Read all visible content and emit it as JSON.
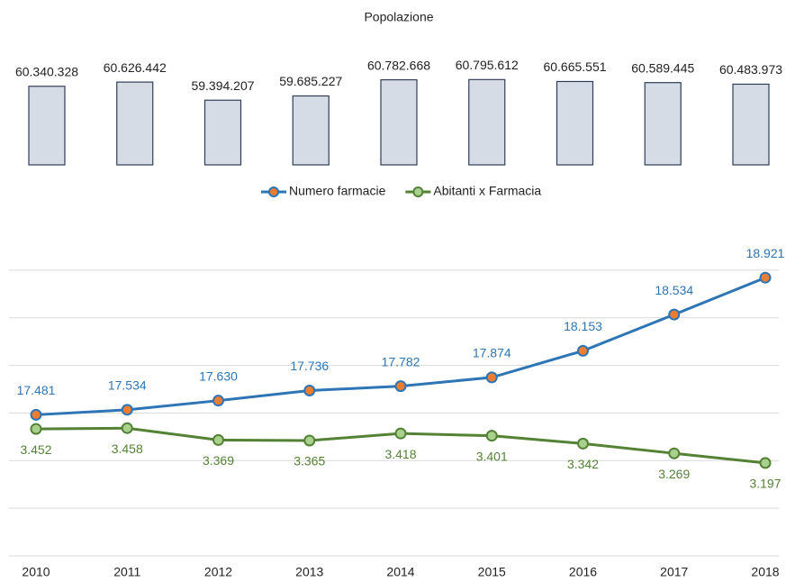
{
  "chart_data": [
    {
      "type": "bar",
      "title": "Popolazione",
      "values": [
        60340328,
        60626442,
        59394207,
        59685227,
        60782668,
        60795612,
        60665551,
        60589445,
        60483973
      ],
      "value_labels": [
        "60.340.328",
        "60.626.442",
        "59.394.207",
        "59.685.227",
        "60.782.668",
        "60.795.612",
        "60.665.551",
        "60.589.445",
        "60.483.973"
      ],
      "color": "#d6dce5",
      "edge_color": "#2f3e57",
      "ylim": [
        55000000,
        61000000
      ]
    },
    {
      "type": "line",
      "categories": [
        "2010",
        "2011",
        "2012",
        "2013",
        "2014",
        "2015",
        "2016",
        "2017",
        "2018"
      ],
      "series": [
        {
          "name": "Numero farmacie",
          "color": "#2e75b6",
          "marker_color": "#ed7d31",
          "values": [
            17481,
            17534,
            17630,
            17736,
            17782,
            17874,
            18153,
            18534,
            18921
          ],
          "value_labels": [
            "17.481",
            "17.534",
            "17.630",
            "17.736",
            "17.782",
            "17.874",
            "18.153",
            "18.534",
            "18.921"
          ]
        },
        {
          "name": "Abitanti x Farmacia",
          "color": "#548235",
          "marker_color": "#a9d18e",
          "axis": "y2",
          "values": [
            3452,
            3458,
            3369,
            3365,
            3418,
            3401,
            3342,
            3269,
            3197
          ],
          "value_labels": [
            "3.452",
            "3.458",
            "3.369",
            "3.365",
            "3.418",
            "3.401",
            "3.342",
            "3.269",
            "3.197"
          ]
        }
      ],
      "ylim": [
        16000,
        19500
      ],
      "yticks": [
        16000,
        16500,
        17000,
        17500,
        18000,
        18500,
        19000
      ],
      "y2lim": [
        2500,
        5000
      ],
      "grid": true,
      "legend": "top"
    }
  ]
}
